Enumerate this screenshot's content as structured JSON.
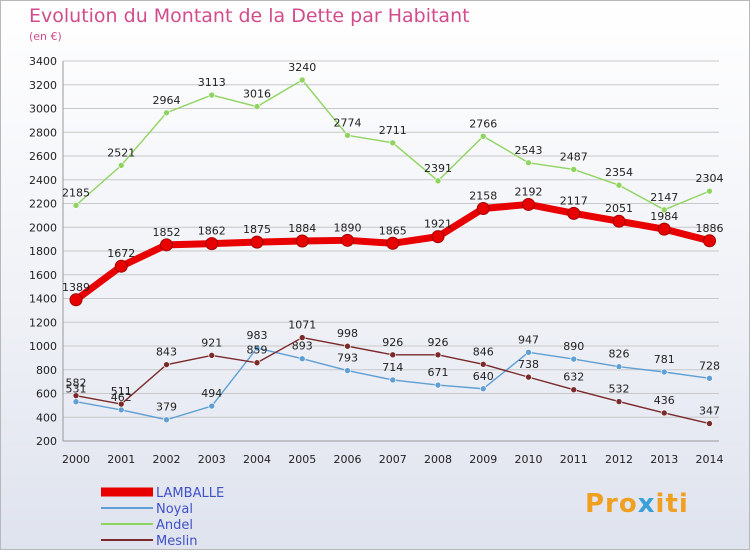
{
  "title": "Evolution du Montant de la Dette par Habitant",
  "unit_label": "(en €)",
  "logo_text": "Proxiti",
  "chart_data": {
    "type": "line",
    "title": "Evolution du Montant de la Dette par Habitant",
    "ylabel": "(en €)",
    "x": [
      "2000",
      "2001",
      "2002",
      "2003",
      "2004",
      "2005",
      "2006",
      "2007",
      "2008",
      "2009",
      "2010",
      "2011",
      "2012",
      "2013",
      "2014"
    ],
    "ylim": [
      200,
      3400
    ],
    "yticks": [
      200,
      400,
      600,
      800,
      1000,
      1200,
      1400,
      1600,
      1800,
      2000,
      2200,
      2400,
      2600,
      2800,
      3000,
      3200,
      3400
    ],
    "grid": "horizontal",
    "legend_position": "bottom-left",
    "series": [
      {
        "name": "LAMBALLE",
        "color": "#e80000",
        "values": [
          1389,
          1672,
          1852,
          1862,
          1875,
          1884,
          1890,
          1865,
          1921,
          2158,
          2192,
          2117,
          2051,
          1984,
          1886
        ]
      },
      {
        "name": "Noyal",
        "color": "#5f9fd4",
        "values": [
          531,
          462,
          379,
          494,
          983,
          893,
          793,
          714,
          671,
          640,
          947,
          890,
          826,
          781,
          728
        ]
      },
      {
        "name": "Andel",
        "color": "#8fd460",
        "values": [
          2185,
          2521,
          2964,
          3113,
          3016,
          3240,
          2774,
          2711,
          2391,
          2766,
          2543,
          2487,
          2354,
          2147,
          2304
        ]
      },
      {
        "name": "Meslin",
        "color": "#7a2a2a",
        "values": [
          582,
          511,
          843,
          921,
          859,
          1071,
          998,
          926,
          926,
          846,
          738,
          632,
          532,
          436,
          347
        ]
      }
    ]
  }
}
